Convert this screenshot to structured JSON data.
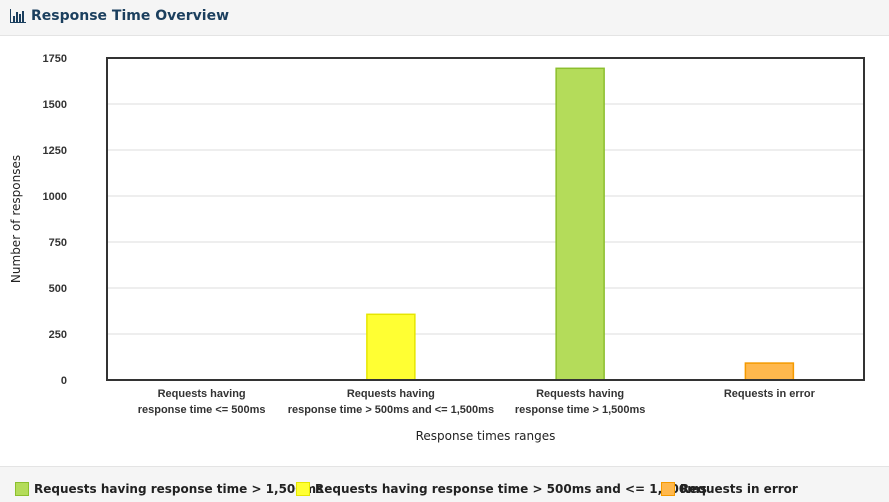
{
  "header": {
    "title": "Response Time Overview",
    "icon": "bar-chart-icon"
  },
  "colors": {
    "green": "#b4dc5a",
    "green_border": "#8cbf2e",
    "yellow": "#ffff33",
    "yellow_border": "#e6e600",
    "orange": "#ffb84d",
    "orange_border": "#f59a00"
  },
  "chart_data": {
    "type": "bar",
    "categories": [
      [
        "Requests having",
        "response time <= 500ms"
      ],
      [
        "Requests having",
        "response time > 500ms and <= 1,500ms"
      ],
      [
        "Requests having",
        "response time > 1,500ms"
      ],
      [
        "Requests in error"
      ]
    ],
    "values": [
      0,
      357,
      1694,
      92
    ],
    "bar_colors": [
      "green",
      "yellow",
      "green",
      "orange"
    ],
    "xlabel": "Response times ranges",
    "ylabel": "Number of responses",
    "ylim": [
      0,
      1750
    ],
    "yticks": [
      0,
      250,
      500,
      750,
      1000,
      1250,
      1500,
      1750
    ],
    "grid": true,
    "legend_position": "bottom"
  },
  "legend": [
    {
      "label": "Requests having response time > 1,500ms",
      "color": "green"
    },
    {
      "label": "Requests having response time > 500ms and <= 1,500ms",
      "color": "yellow"
    },
    {
      "label": "Requests in error",
      "color": "orange"
    }
  ]
}
